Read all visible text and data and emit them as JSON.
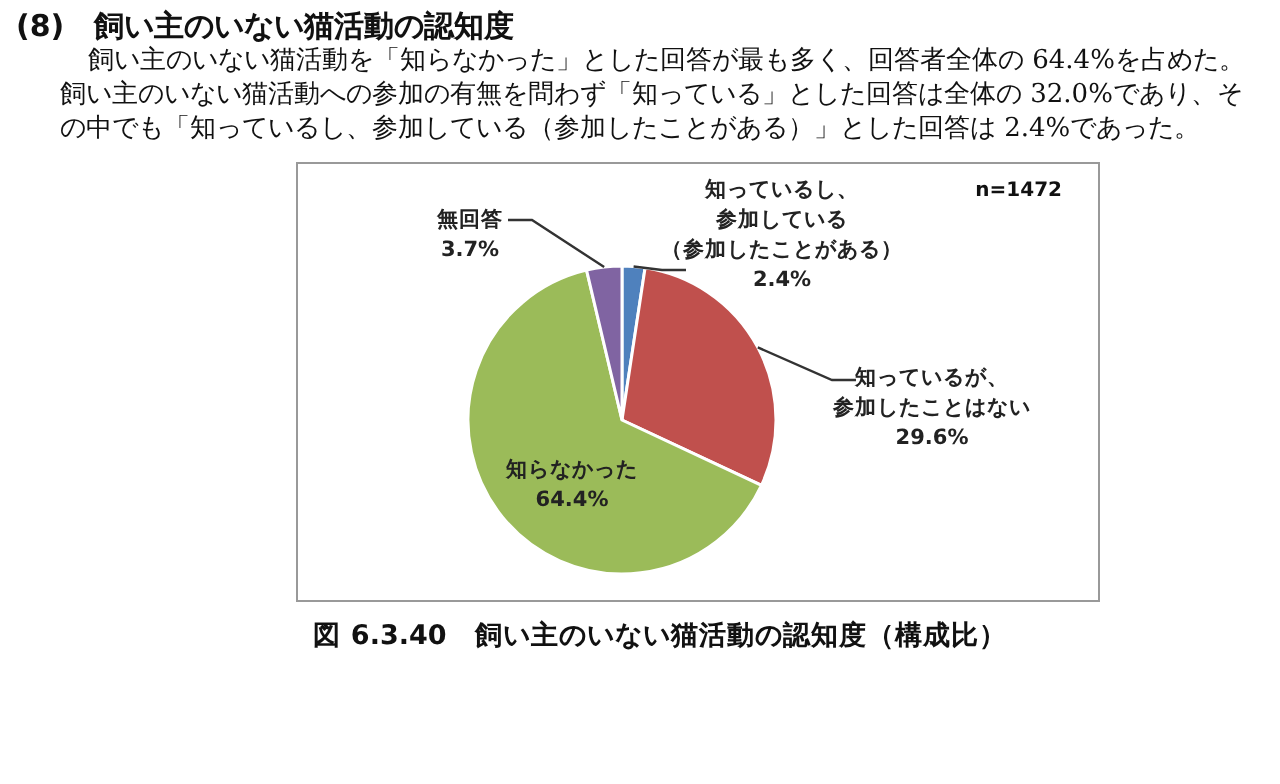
{
  "chart_data": {
    "type": "pie",
    "title": "(8)　飼い主のいない猫活動の認知度",
    "subtitle": "飼い主のいない猫活動を「知らなかった」とした回答が最も多く、回答者全体の 64.4%を占めた。飼い主のいない猫活動への参加の有無を問わず「知っている」とした回答は全体の 32.0%であり、その中でも「知っているし、参加している（参加したことがある）」とした回答は 2.4%であった。",
    "categories": [
      "知っているし、参加している（参加したことがある）",
      "知っているが、参加したことはない",
      "知らなかった",
      "無回答"
    ],
    "values": [
      2.4,
      29.6,
      64.4,
      3.7
    ],
    "value_labels": [
      "2.4%",
      "29.6%",
      "64.4%",
      "3.7%"
    ],
    "colors": [
      "#4f81bd",
      "#c0504d",
      "#9bbb59",
      "#8064a2"
    ],
    "annotations": [
      "n=1472",
      "図 6.3.40　飼い主のいない猫活動の認知度（構成比）"
    ]
  }
}
